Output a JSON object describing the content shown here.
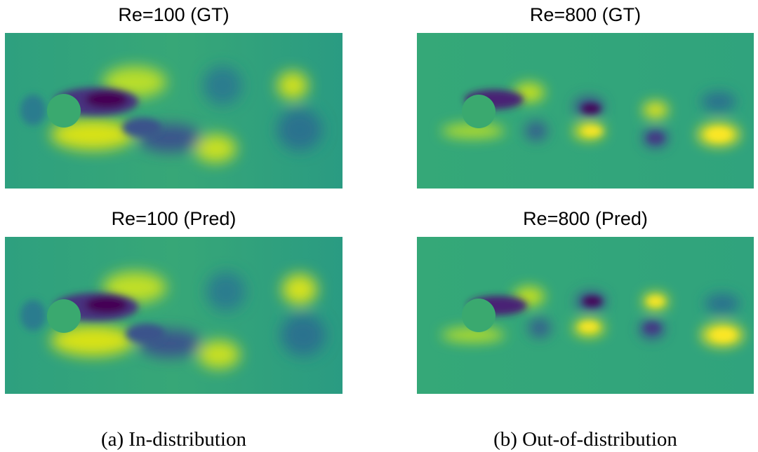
{
  "figure": {
    "panels": [
      {
        "id": "a-gt",
        "title": "Re=100 (GT)",
        "re": 100,
        "kind": "GT"
      },
      {
        "id": "b-gt",
        "title": "Re=800 (GT)",
        "re": 800,
        "kind": "GT"
      },
      {
        "id": "a-pred",
        "title": "Re=100 (Pred)",
        "re": 100,
        "kind": "Pred"
      },
      {
        "id": "b-pred",
        "title": "Re=800 (Pred)",
        "re": 800,
        "kind": "Pred"
      }
    ],
    "captions": {
      "left": "(a)  In-distribution",
      "right": "(b)  Out-of-distribution"
    },
    "colormap": {
      "background": "#2fa77e",
      "low": "#440154",
      "mid_low": "#31688e",
      "high": "#f4e51e",
      "cylinder": "#3aaa6e"
    }
  }
}
